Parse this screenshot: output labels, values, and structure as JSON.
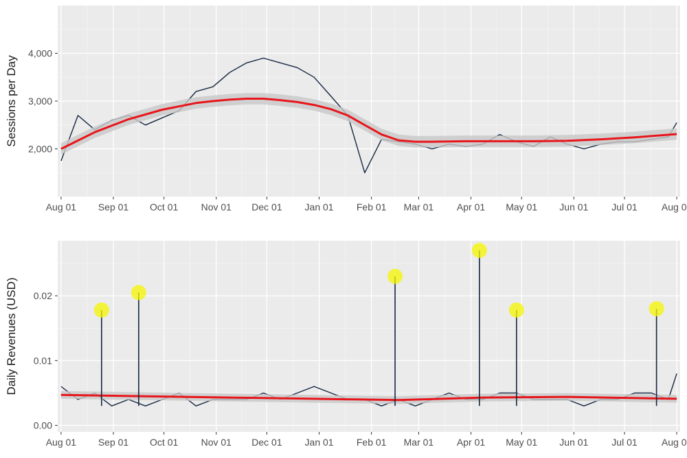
{
  "chart_data": [
    {
      "type": "line",
      "title": "",
      "xlabel": "",
      "ylabel": "Sessions per Day",
      "x_tick_labels": [
        "Aug 01",
        "Sep 01",
        "Oct 01",
        "Nov 01",
        "Dec 01",
        "Jan 01",
        "Feb 01",
        "Mar 01",
        "Apr 01",
        "May 01",
        "Jun 01",
        "Jul 01",
        "Aug 01"
      ],
      "y_tick_labels": [
        "2,000",
        "3,000",
        "4,000"
      ],
      "y_ticks": [
        2000,
        3000,
        4000
      ],
      "ylim": [
        1000,
        5000
      ],
      "xlim": [
        -2,
        367
      ],
      "grid": true,
      "series": [
        {
          "color": "#14263f",
          "x": [
            0,
            10,
            20,
            30,
            40,
            50,
            60,
            70,
            80,
            90,
            100,
            110,
            120,
            130,
            140,
            150,
            160,
            170,
            180,
            190,
            200,
            210,
            220,
            230,
            240,
            250,
            260,
            270,
            280,
            290,
            300,
            310,
            320,
            330,
            340,
            350,
            360,
            365
          ],
          "values": [
            1750,
            2700,
            2400,
            2600,
            2700,
            2500,
            2650,
            2800,
            3200,
            3300,
            3600,
            3800,
            3900,
            3800,
            3700,
            3500,
            3100,
            2700,
            1500,
            2200,
            2150,
            2100,
            2000,
            2100,
            2050,
            2100,
            2300,
            2150,
            2050,
            2250,
            2100,
            2000,
            2100,
            2150,
            2150,
            2200,
            2250,
            2550
          ]
        },
        {
          "color": "#e8151b",
          "x": [
            0,
            20,
            40,
            60,
            80,
            90,
            100,
            110,
            120,
            130,
            140,
            150,
            160,
            170,
            180,
            190,
            200,
            210,
            220,
            240,
            260,
            280,
            300,
            320,
            340,
            365
          ],
          "values": [
            2000,
            2350,
            2620,
            2820,
            2960,
            3000,
            3030,
            3050,
            3050,
            3020,
            2980,
            2920,
            2830,
            2700,
            2500,
            2300,
            2180,
            2150,
            2150,
            2160,
            2160,
            2160,
            2170,
            2200,
            2240,
            2310
          ]
        }
      ]
    },
    {
      "type": "line",
      "title": "",
      "xlabel": "",
      "ylabel": "Daily Revenues (USD)",
      "x_tick_labels": [
        "Aug 01",
        "Sep 01",
        "Oct 01",
        "Nov 01",
        "Dec 01",
        "Jan 01",
        "Feb 01",
        "Mar 01",
        "Apr 01",
        "May 01",
        "Jun 01",
        "Jul 01",
        "Aug 01"
      ],
      "y_tick_labels": [
        "0.00",
        "0.01",
        "0.02"
      ],
      "y_ticks": [
        0,
        0.01,
        0.02
      ],
      "ylim": [
        -0.001,
        0.0285
      ],
      "xlim": [
        -2,
        367
      ],
      "grid": true,
      "series": [
        {
          "color": "#14263f",
          "x": [
            0,
            10,
            20,
            30,
            40,
            50,
            60,
            70,
            80,
            90,
            100,
            110,
            120,
            130,
            140,
            150,
            160,
            170,
            180,
            190,
            200,
            210,
            220,
            230,
            240,
            250,
            260,
            270,
            280,
            290,
            300,
            310,
            320,
            330,
            340,
            350,
            360,
            365
          ],
          "values": [
            0.006,
            0.004,
            0.005,
            0.003,
            0.004,
            0.003,
            0.004,
            0.005,
            0.003,
            0.004,
            0.004,
            0.004,
            0.005,
            0.004,
            0.005,
            0.006,
            0.005,
            0.004,
            0.004,
            0.003,
            0.004,
            0.003,
            0.004,
            0.005,
            0.004,
            0.004,
            0.005,
            0.005,
            0.004,
            0.004,
            0.004,
            0.003,
            0.004,
            0.004,
            0.005,
            0.005,
            0.004,
            0.008
          ]
        },
        {
          "color": "#e8151b",
          "x": [
            0,
            50,
            100,
            150,
            200,
            250,
            300,
            365
          ],
          "values": [
            0.0047,
            0.0045,
            0.0043,
            0.0041,
            0.0039,
            0.0043,
            0.0044,
            0.0041
          ]
        }
      ],
      "highlights": {
        "color": "#f5f500",
        "points": [
          {
            "x": 24,
            "y": 0.0178
          },
          {
            "x": 46,
            "y": 0.0205
          },
          {
            "x": 198,
            "y": 0.023
          },
          {
            "x": 248,
            "y": 0.027
          },
          {
            "x": 270,
            "y": 0.0178
          },
          {
            "x": 353,
            "y": 0.018
          }
        ]
      }
    }
  ]
}
